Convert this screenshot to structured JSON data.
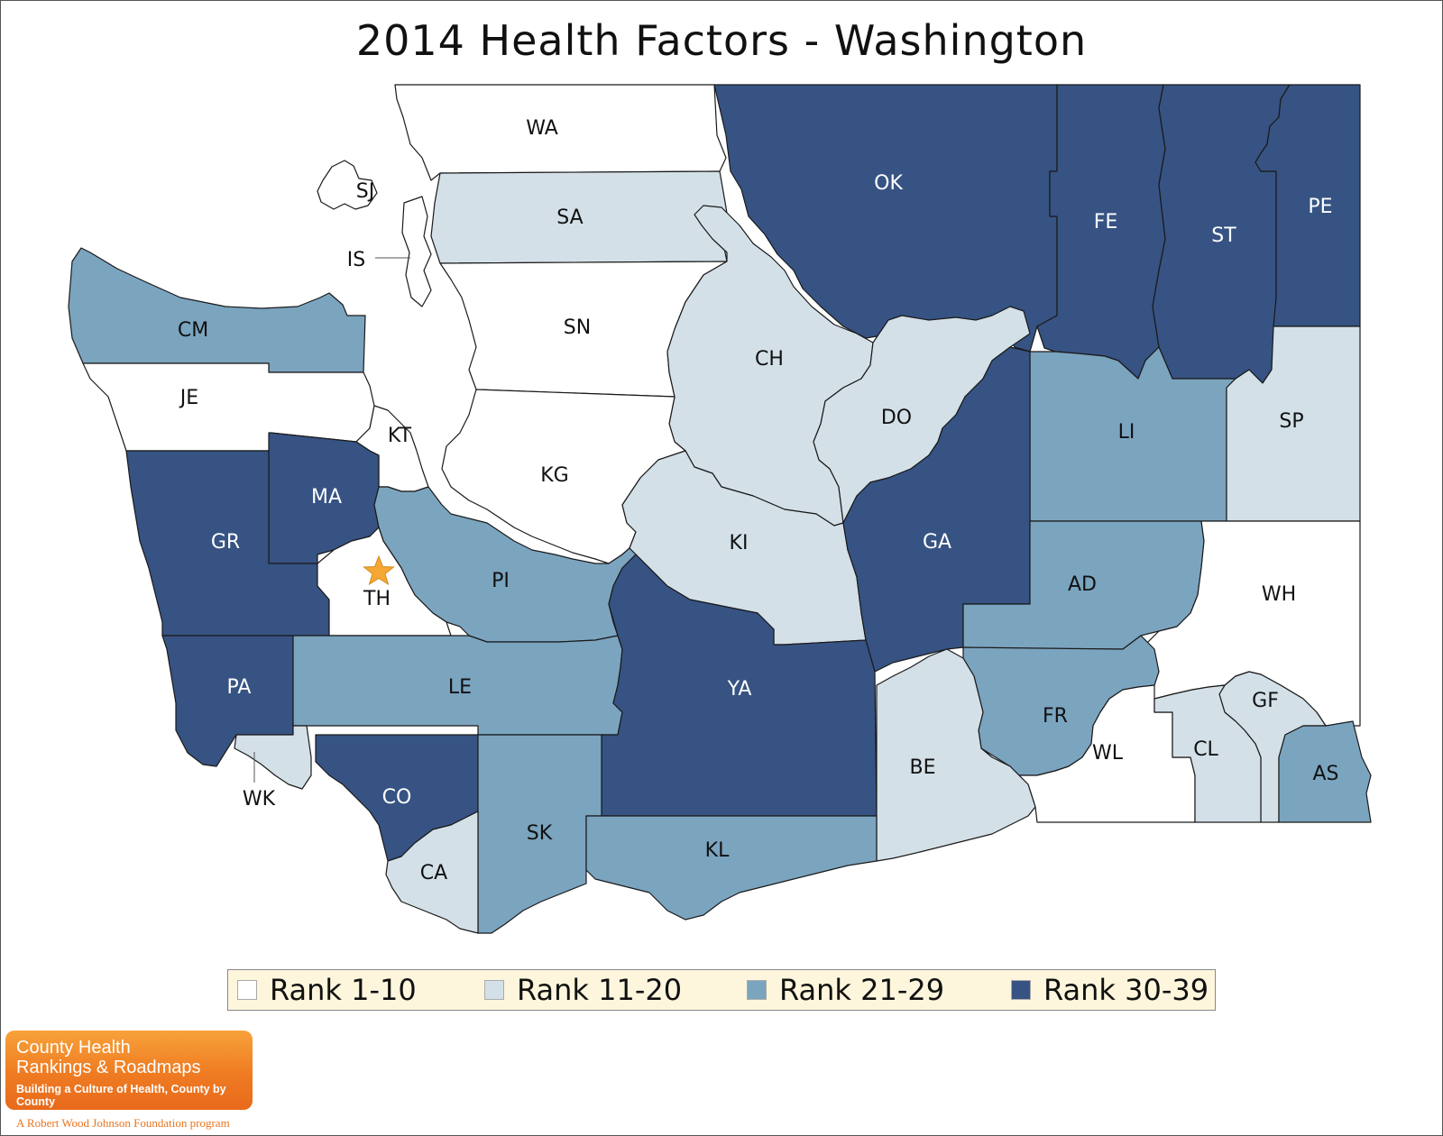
{
  "title": "2014 Health Factors - Washington",
  "colors": {
    "rank_1_10": "#ffffff",
    "rank_11_20": "#d3e0e8",
    "rank_21_29": "#7ba4bf",
    "rank_30_39": "#365383",
    "star": "#f5a733",
    "legend_bg": "#fdf6dc"
  },
  "legend": [
    {
      "label": "Rank 1-10",
      "color": "#ffffff"
    },
    {
      "label": "Rank 11-20",
      "color": "#d3e0e8"
    },
    {
      "label": "Rank 21-29",
      "color": "#7ba4bf"
    },
    {
      "label": "Rank 30-39",
      "color": "#365383"
    }
  ],
  "counties": [
    {
      "code": "WA",
      "rank_group": "Rank 1-10"
    },
    {
      "code": "SJ",
      "rank_group": "Rank 1-10"
    },
    {
      "code": "IS",
      "rank_group": "Rank 1-10"
    },
    {
      "code": "SA",
      "rank_group": "Rank 11-20"
    },
    {
      "code": "OK",
      "rank_group": "Rank 30-39"
    },
    {
      "code": "FE",
      "rank_group": "Rank 30-39"
    },
    {
      "code": "ST",
      "rank_group": "Rank 30-39"
    },
    {
      "code": "PE",
      "rank_group": "Rank 30-39"
    },
    {
      "code": "CM",
      "rank_group": "Rank 21-29"
    },
    {
      "code": "SN",
      "rank_group": "Rank 1-10"
    },
    {
      "code": "CH",
      "rank_group": "Rank 11-20"
    },
    {
      "code": "JE",
      "rank_group": "Rank 1-10"
    },
    {
      "code": "DO",
      "rank_group": "Rank 11-20"
    },
    {
      "code": "LI",
      "rank_group": "Rank 21-29"
    },
    {
      "code": "SP",
      "rank_group": "Rank 11-20"
    },
    {
      "code": "KT",
      "rank_group": "Rank 1-10"
    },
    {
      "code": "KG",
      "rank_group": "Rank 1-10"
    },
    {
      "code": "MA",
      "rank_group": "Rank 30-39"
    },
    {
      "code": "GR",
      "rank_group": "Rank 30-39"
    },
    {
      "code": "KI",
      "rank_group": "Rank 11-20"
    },
    {
      "code": "GA",
      "rank_group": "Rank 30-39"
    },
    {
      "code": "PI",
      "rank_group": "Rank 21-29"
    },
    {
      "code": "TH",
      "rank_group": "Rank 1-10"
    },
    {
      "code": "AD",
      "rank_group": "Rank 21-29"
    },
    {
      "code": "WH",
      "rank_group": "Rank 1-10"
    },
    {
      "code": "PA",
      "rank_group": "Rank 30-39"
    },
    {
      "code": "LE",
      "rank_group": "Rank 21-29"
    },
    {
      "code": "YA",
      "rank_group": "Rank 30-39"
    },
    {
      "code": "FR",
      "rank_group": "Rank 21-29"
    },
    {
      "code": "GF",
      "rank_group": "Rank 11-20"
    },
    {
      "code": "WL",
      "rank_group": "Rank 1-10"
    },
    {
      "code": "CL",
      "rank_group": "Rank 11-20"
    },
    {
      "code": "BE",
      "rank_group": "Rank 11-20"
    },
    {
      "code": "AS",
      "rank_group": "Rank 21-29"
    },
    {
      "code": "WK",
      "rank_group": "Rank 11-20"
    },
    {
      "code": "CO",
      "rank_group": "Rank 30-39"
    },
    {
      "code": "SK",
      "rank_group": "Rank 21-29"
    },
    {
      "code": "KL",
      "rank_group": "Rank 21-29"
    },
    {
      "code": "CA",
      "rank_group": "Rank 11-20"
    }
  ],
  "state_capital_marker": "star-icon",
  "logo": {
    "line1": "County Health",
    "line2": "Rankings & Roadmaps",
    "tagline": "Building a Culture of Health, County by County",
    "program": "A Robert Wood Johnson Foundation program"
  }
}
